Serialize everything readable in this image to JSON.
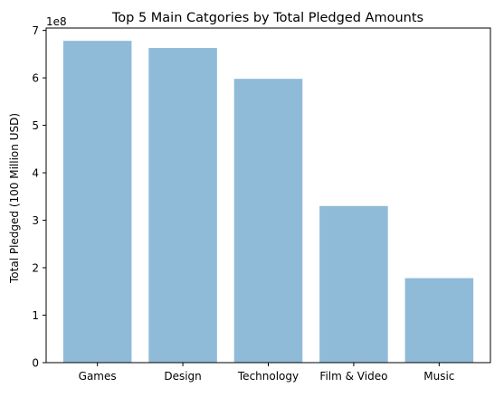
{
  "chart_data": {
    "type": "bar",
    "title": "Top 5 Main Catgories by Total Pledged Amounts",
    "xlabel": "",
    "ylabel": "Total Pledged (100 Million USD)",
    "offset_label": "1e8",
    "categories": [
      "Games",
      "Design",
      "Technology",
      "Film & Video",
      "Music"
    ],
    "values": [
      678000000,
      663000000,
      598000000,
      330000000,
      178000000
    ],
    "ylim": [
      0,
      705000000
    ],
    "yticks": [
      0,
      100000000,
      200000000,
      300000000,
      400000000,
      500000000,
      600000000,
      700000000
    ],
    "ytick_labels": [
      "0",
      "1",
      "2",
      "3",
      "4",
      "5",
      "6",
      "7"
    ],
    "bar_color": "#1f77b4",
    "bar_alpha": 0.5,
    "grid": false,
    "legend": "none"
  }
}
